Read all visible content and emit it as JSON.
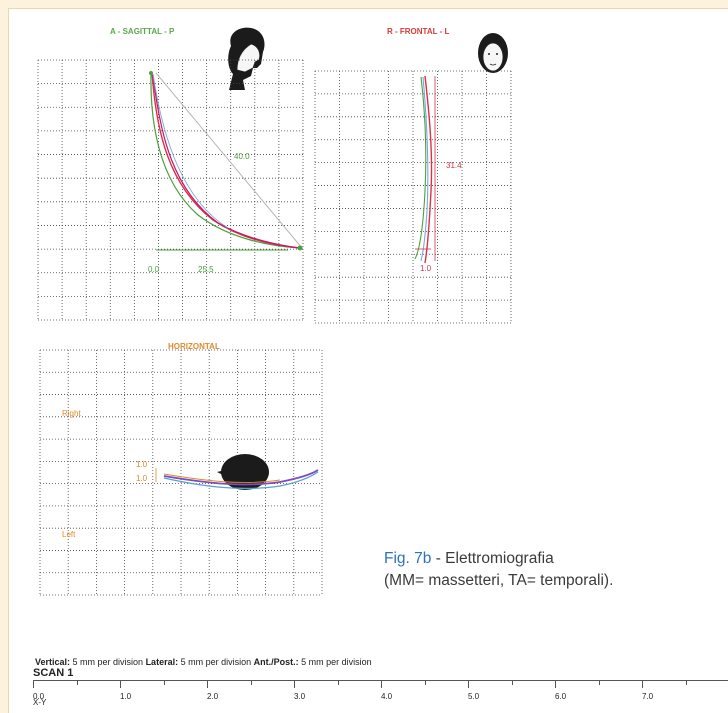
{
  "sagittal": {
    "title": "A - SAGITTAL - P",
    "value_diag": "40.0",
    "value_left": "0.0",
    "value_bottom": "25.5",
    "colors": {
      "grid": "#333333",
      "green": "#4aa03f",
      "red": "#d8324a",
      "magenta": "#c2186b",
      "blue": "#7aa9d8"
    }
  },
  "frontal": {
    "title": "R - FRONTAL - L",
    "value_vertical": "31.4",
    "value_bottom": "1.0"
  },
  "horizontal": {
    "title": "HORIZONTAL",
    "right_label": "Right",
    "left_label": "Left",
    "value_top": "1.0",
    "value_bottom": "1.0"
  },
  "caption": {
    "figure": "Fig. 7b",
    "text": " - Elettromiografia",
    "line2": "(MM= massetteri, TA= temporali)."
  },
  "scale_info": {
    "vertical_label": "Vertical:",
    "vertical_value": " 5 mm per division ",
    "lateral_label": "Lateral:",
    "lateral_value": " 5 mm per division ",
    "antpost_label": "Ant./Post.:",
    "antpost_value": " 5 mm per division"
  },
  "scan": {
    "title": "SCAN 1",
    "axis_label": "X-Y",
    "ticks": [
      "0.0",
      "1.0",
      "2.0",
      "3.0",
      "4.0",
      "5.0",
      "6.0",
      "7.0"
    ]
  }
}
